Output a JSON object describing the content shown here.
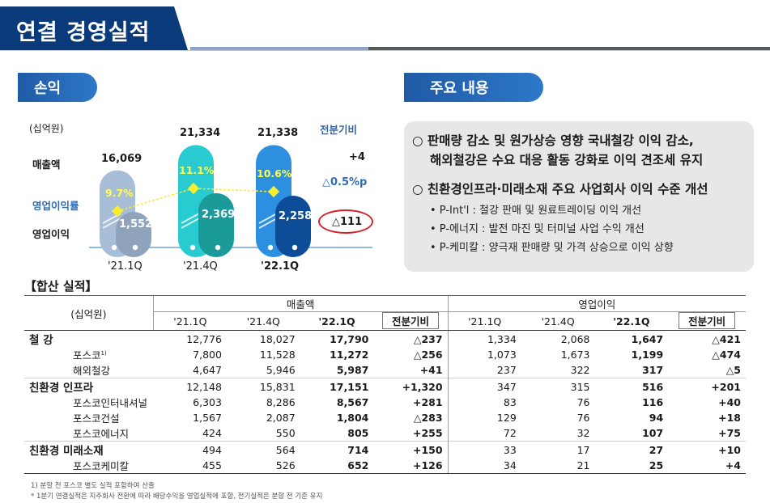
{
  "title": "연결 경영실적",
  "tabs": {
    "pl": "손익",
    "key": "주요 내용"
  },
  "chart": {
    "unit": "(십억원)",
    "row_labels": {
      "sales": "매출액",
      "margin": "영업이익률",
      "op": "영업이익"
    },
    "diff_header": "전분기비",
    "diffs": {
      "sales": "+4",
      "margin": "△0.5%p",
      "op": "△111"
    },
    "quarters": [
      "'21.1Q",
      "'21.4Q",
      "'22.1Q"
    ]
  },
  "chart_data": {
    "type": "bar",
    "categories": [
      "'21.1Q",
      "'21.4Q",
      "'22.1Q"
    ],
    "series": [
      {
        "name": "매출액",
        "values": [
          16069,
          21334,
          21338
        ],
        "labels": [
          "16,069",
          "21,334",
          "21,338"
        ]
      },
      {
        "name": "영업이익",
        "values": [
          1552,
          2369,
          2258
        ],
        "labels": [
          "1,552",
          "2,369",
          "2,258"
        ]
      },
      {
        "name": "영업이익률",
        "values": [
          9.7,
          11.1,
          10.6
        ],
        "labels": [
          "9.7%",
          "11.1%",
          "10.6%"
        ]
      }
    ],
    "colors": {
      "sales": [
        "#a8bdd8",
        "#27cbd0",
        "#2d8fe0"
      ],
      "op": [
        "#8fa3bd",
        "#1a9b9a",
        "#0d4c97"
      ]
    }
  },
  "key_points": {
    "p1": "○ 판매량 감소 및 원가상승 영향 국내철강 이익 감소,",
    "p1b": "해외철강은 수요 대응 활동 강화로 이익 견조세 유지",
    "p2": "○ 친환경인프라·미래소재 주요 사업회사 이익 수준 개선",
    "subs": [
      "• P-Int'l : 철강 판매 및 원료트레이딩 이익 개선",
      "• P-에너지 : 발전 마진 및 터미널 사업 수익 개선",
      "• P-케미칼 : 양극재 판매량 및 가격 상승으로 이익 상향"
    ]
  },
  "table": {
    "title": "【합산 실적】",
    "unit": "(십억원)",
    "groups": [
      "매출액",
      "영업이익"
    ],
    "cols": [
      "'21.1Q",
      "'21.4Q",
      "'22.1Q",
      "전분기비"
    ],
    "rows": [
      {
        "name": "철 강",
        "main": true,
        "v": [
          "12,776",
          "18,027",
          "17,790",
          "△237",
          "1,334",
          "2,068",
          "1,647",
          "△421"
        ]
      },
      {
        "name": "포스코",
        "sup": "1)",
        "main": false,
        "v": [
          "7,800",
          "11,528",
          "11,272",
          "△256",
          "1,073",
          "1,673",
          "1,199",
          "△474"
        ]
      },
      {
        "name": "해외철강",
        "main": false,
        "v": [
          "4,647",
          "5,946",
          "5,987",
          "+41",
          "237",
          "322",
          "317",
          "△5"
        ]
      },
      {
        "name": "친환경 인프라",
        "main": true,
        "v": [
          "12,148",
          "15,831",
          "17,151",
          "+1,320",
          "347",
          "315",
          "516",
          "+201"
        ]
      },
      {
        "name": "포스코인터내셔널",
        "main": false,
        "v": [
          "6,303",
          "8,286",
          "8,567",
          "+281",
          "83",
          "76",
          "116",
          "+40"
        ]
      },
      {
        "name": "포스코건설",
        "main": false,
        "v": [
          "1,567",
          "2,087",
          "1,804",
          "△283",
          "129",
          "76",
          "94",
          "+18"
        ]
      },
      {
        "name": "포스코에너지",
        "main": false,
        "v": [
          "424",
          "550",
          "805",
          "+255",
          "72",
          "32",
          "107",
          "+75"
        ]
      },
      {
        "name": "친환경 미래소재",
        "main": true,
        "v": [
          "494",
          "564",
          "714",
          "+150",
          "33",
          "17",
          "27",
          "+10"
        ]
      },
      {
        "name": "포스코케미칼",
        "main": false,
        "v": [
          "455",
          "526",
          "652",
          "+126",
          "34",
          "21",
          "25",
          "+4"
        ]
      }
    ]
  },
  "footnotes": [
    "1) 분할 전 포스코 별도 실적 포함하여 산출",
    "* 1분기 연결실적은 지주회사 전환에 따라 배당수익을 영업실적에 포함, 전기실적은 분할 전 기준 유지"
  ]
}
